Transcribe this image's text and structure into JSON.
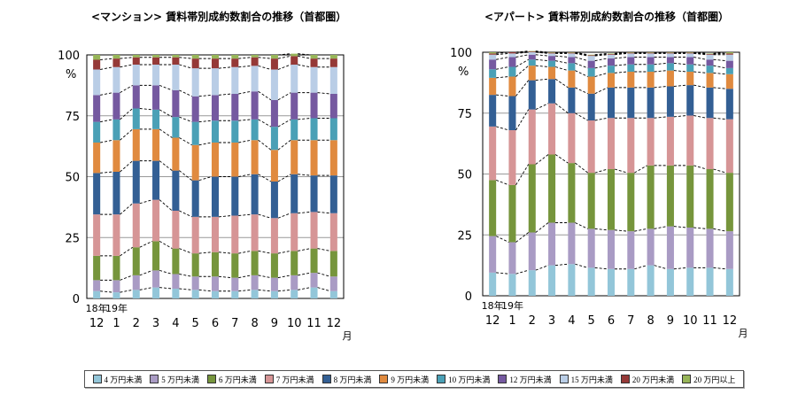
{
  "chart_data": [
    {
      "type": "bar",
      "stacked": true,
      "title": "<マンション> 賃料帯別成約数割合の推移（首都圏）",
      "xlabel": "月",
      "ylabel": "%",
      "ylim": [
        0,
        100
      ],
      "yticks": [
        0,
        25,
        50,
        75,
        100
      ],
      "year_labels": [
        {
          "index": 0,
          "label": "18年"
        },
        {
          "index": 1,
          "label": "19年"
        }
      ],
      "categories": [
        "12",
        "1",
        "2",
        "3",
        "4",
        "5",
        "6",
        "7",
        "8",
        "9",
        "10",
        "11",
        "12"
      ],
      "grid": true,
      "connector_lines": "dashed",
      "series": [
        {
          "name": "4 万円未満",
          "values": [
            3.0,
            2.5,
            3.5,
            4.5,
            4.0,
            3.5,
            3.0,
            3.0,
            3.5,
            3.0,
            3.5,
            4.5,
            3.0
          ]
        },
        {
          "name": "5 万円未満",
          "values": [
            4.5,
            5.0,
            6.0,
            7.0,
            6.0,
            5.5,
            6.0,
            5.5,
            6.0,
            5.5,
            6.0,
            6.0,
            6.0
          ]
        },
        {
          "name": "6 万円未満",
          "values": [
            10.0,
            10.0,
            11.5,
            12.0,
            10.5,
            9.5,
            10.0,
            10.0,
            10.0,
            10.0,
            10.0,
            10.0,
            10.5
          ]
        },
        {
          "name": "7 万円未満",
          "values": [
            17.0,
            17.0,
            18.0,
            17.0,
            15.5,
            15.0,
            14.5,
            15.5,
            15.0,
            14.5,
            15.5,
            15.0,
            15.5
          ]
        },
        {
          "name": "8 万円未満",
          "values": [
            17.0,
            17.5,
            17.5,
            16.0,
            16.5,
            15.0,
            16.5,
            16.0,
            16.5,
            15.0,
            16.0,
            15.0,
            15.5
          ]
        },
        {
          "name": "9 万円未満",
          "values": [
            12.5,
            13.0,
            13.0,
            13.0,
            13.5,
            14.5,
            14.0,
            14.0,
            14.0,
            13.0,
            14.0,
            14.5,
            14.5
          ]
        },
        {
          "name": "10 万円未満",
          "values": [
            8.5,
            8.5,
            8.5,
            8.0,
            8.5,
            9.5,
            9.0,
            9.0,
            8.5,
            9.5,
            8.5,
            9.0,
            9.0
          ]
        },
        {
          "name": "12 万円未満",
          "values": [
            11.0,
            11.0,
            9.5,
            10.0,
            11.0,
            10.5,
            10.5,
            11.0,
            11.5,
            11.0,
            11.0,
            10.5,
            10.0
          ]
        },
        {
          "name": "15 万円未満",
          "values": [
            10.5,
            10.5,
            8.5,
            8.5,
            10.5,
            11.5,
            11.0,
            11.0,
            10.5,
            12.5,
            11.5,
            10.5,
            11.0
          ]
        },
        {
          "name": "20 万円未満",
          "values": [
            4.0,
            3.5,
            3.0,
            3.0,
            3.0,
            4.0,
            4.0,
            3.5,
            3.5,
            4.5,
            3.5,
            3.5,
            3.5
          ]
        },
        {
          "name": "20 万円以上",
          "values": [
            2.0,
            1.5,
            1.0,
            1.0,
            1.0,
            1.5,
            1.5,
            1.5,
            1.0,
            1.5,
            1.0,
            1.5,
            1.5
          ]
        }
      ]
    },
    {
      "type": "bar",
      "stacked": true,
      "title": "<アパート> 賃料帯別成約数割合の推移（首都圏）",
      "xlabel": "月",
      "ylabel": "%",
      "ylim": [
        0,
        100
      ],
      "yticks": [
        0,
        25,
        50,
        75,
        100
      ],
      "year_labels": [
        {
          "index": 0,
          "label": "18年"
        },
        {
          "index": 1,
          "label": "19年"
        }
      ],
      "categories": [
        "12",
        "1",
        "2",
        "3",
        "4",
        "5",
        "6",
        "7",
        "8",
        "9",
        "10",
        "11",
        "12"
      ],
      "grid": true,
      "connector_lines": "dashed",
      "series": [
        {
          "name": "4 万円未満",
          "values": [
            9.5,
            9.0,
            10.5,
            12.5,
            13.0,
            11.5,
            11.0,
            11.0,
            12.5,
            11.0,
            11.5,
            11.5,
            11.0
          ]
        },
        {
          "name": "5 万円未満",
          "values": [
            15.0,
            13.0,
            15.5,
            17.5,
            17.0,
            16.0,
            16.0,
            15.5,
            15.0,
            17.5,
            16.5,
            16.0,
            15.5
          ]
        },
        {
          "name": "6 万円未満",
          "values": [
            23.0,
            23.5,
            28.0,
            28.0,
            24.5,
            23.0,
            25.0,
            24.0,
            26.0,
            25.0,
            25.5,
            24.5,
            24.0
          ]
        },
        {
          "name": "7 万円未満",
          "values": [
            22.0,
            22.5,
            22.5,
            21.0,
            20.5,
            21.5,
            21.0,
            22.5,
            19.5,
            20.0,
            20.5,
            21.0,
            22.0
          ]
        },
        {
          "name": "8 万円未満",
          "values": [
            13.0,
            14.0,
            12.0,
            10.0,
            10.5,
            11.0,
            12.5,
            12.5,
            12.5,
            12.5,
            12.5,
            12.5,
            12.5
          ]
        },
        {
          "name": "9 万円未満",
          "values": [
            7.0,
            8.0,
            6.0,
            5.0,
            7.0,
            7.0,
            6.0,
            6.5,
            6.5,
            6.5,
            5.5,
            6.0,
            6.0
          ]
        },
        {
          "name": "10 万円未満",
          "values": [
            3.5,
            4.0,
            2.5,
            2.5,
            3.0,
            3.5,
            3.0,
            3.0,
            3.0,
            3.0,
            3.0,
            3.0,
            2.5
          ]
        },
        {
          "name": "12 万円未満",
          "values": [
            4.0,
            4.0,
            2.0,
            2.0,
            2.5,
            3.0,
            3.0,
            3.0,
            3.0,
            2.5,
            3.0,
            2.5,
            3.0
          ]
        },
        {
          "name": "15 万円未満",
          "values": [
            2.0,
            1.5,
            1.0,
            1.0,
            1.5,
            2.0,
            1.5,
            1.5,
            1.5,
            1.5,
            1.5,
            2.0,
            2.5
          ]
        },
        {
          "name": "20 万円未満",
          "values": [
            0.5,
            0.5,
            0.3,
            0.3,
            0.3,
            0.3,
            0.3,
            0.3,
            0.3,
            0.3,
            0.3,
            0.3,
            0.5
          ]
        },
        {
          "name": "20 万円以上",
          "values": [
            0.5,
            0.0,
            0.2,
            0.2,
            0.2,
            0.2,
            0.2,
            0.2,
            0.2,
            0.2,
            0.2,
            0.2,
            0.5
          ]
        }
      ]
    }
  ],
  "legend": {
    "placement": "bottom",
    "items": [
      {
        "label": "4 万円未満",
        "color": "#93c6d9"
      },
      {
        "label": "5 万円未満",
        "color": "#a99bc4"
      },
      {
        "label": "6 万円未満",
        "color": "#76953c"
      },
      {
        "label": "7 万円未満",
        "color": "#d69596"
      },
      {
        "label": "8 万円未満",
        "color": "#335f94"
      },
      {
        "label": "9 万円未満",
        "color": "#e08a3f"
      },
      {
        "label": "10 万円未満",
        "color": "#4aa0b6"
      },
      {
        "label": "12 万円未満",
        "color": "#7559a0"
      },
      {
        "label": "15 万円未満",
        "color": "#b9cde6"
      },
      {
        "label": "20 万円未満",
        "color": "#953937"
      },
      {
        "label": "20 万円以上",
        "color": "#97b558"
      }
    ]
  }
}
